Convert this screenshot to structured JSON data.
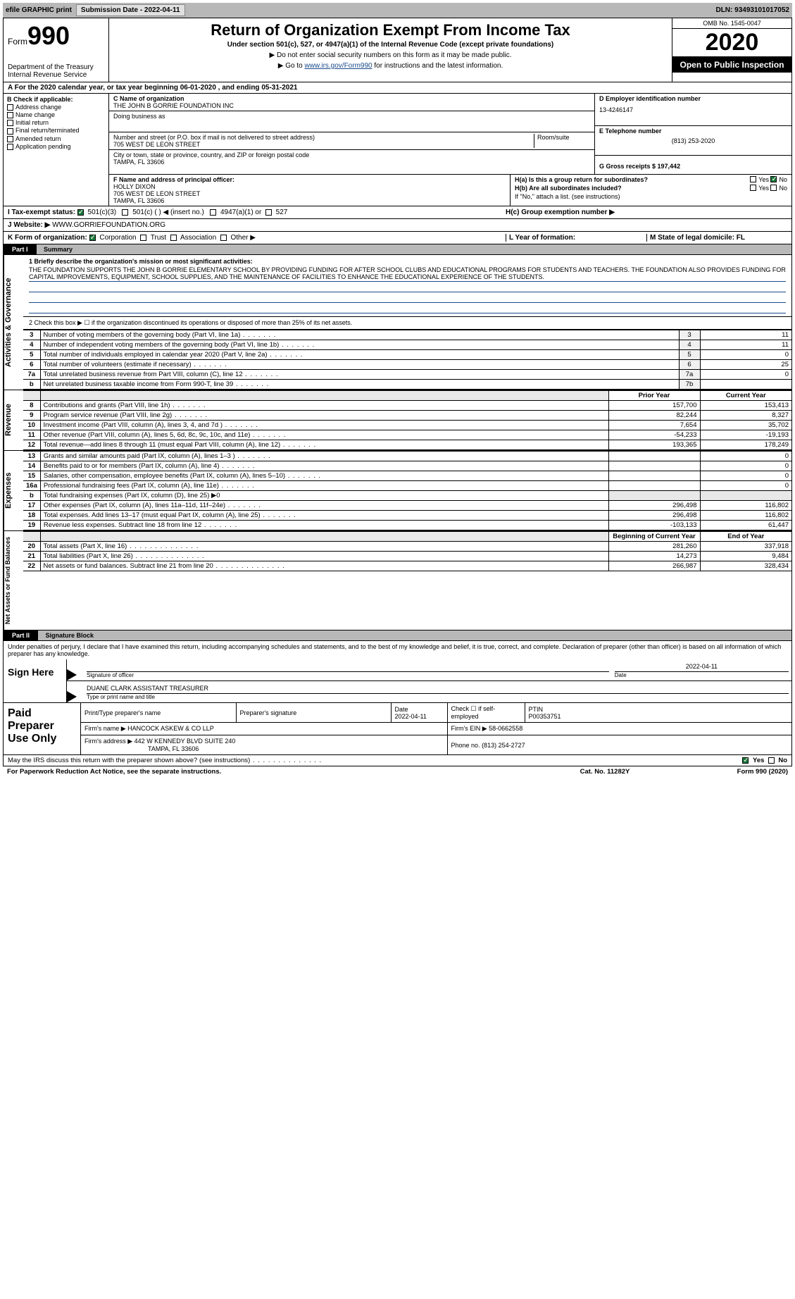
{
  "topbar": {
    "efile": "efile GRAPHIC print",
    "subdate_label": "Submission Date - 2022-04-11",
    "dln": "DLN: 93493101017052"
  },
  "header": {
    "form_word": "Form",
    "form_num": "990",
    "dept": "Department of the Treasury\nInternal Revenue Service",
    "title": "Return of Organization Exempt From Income Tax",
    "sub": "Under section 501(c), 527, or 4947(a)(1) of the Internal Revenue Code (except private foundations)",
    "note1": "▶ Do not enter social security numbers on this form as it may be made public.",
    "note2_pre": "▶ Go to ",
    "note2_link": "www.irs.gov/Form990",
    "note2_post": " for instructions and the latest information.",
    "omb": "OMB No. 1545-0047",
    "year": "2020",
    "open": "Open to Public Inspection"
  },
  "row_a": "A For the 2020 calendar year, or tax year beginning 06-01-2020   , and ending 05-31-2021",
  "col_b": {
    "hdr": "B Check if applicable:",
    "items": [
      "Address change",
      "Name change",
      "Initial return",
      "Final return/terminated",
      "Amended return",
      "Application pending"
    ]
  },
  "col_c": {
    "name_label": "C Name of organization",
    "name": "THE JOHN B GORRIE FOUNDATION INC",
    "dba_label": "Doing business as",
    "dba": "",
    "addr_label": "Number and street (or P.O. box if mail is not delivered to street address)",
    "room_label": "Room/suite",
    "addr": "705 WEST DE LEON STREET",
    "city_label": "City or town, state or province, country, and ZIP or foreign postal code",
    "city": "TAMPA, FL  33606",
    "f_label": "F Name and address of principal officer:",
    "f_name": "HOLLY DIXON",
    "f_addr1": "705 WEST DE LEON STREET",
    "f_addr2": "TAMPA, FL  33606"
  },
  "col_de": {
    "d_label": "D Employer identification number",
    "d_val": "13-4246147",
    "e_label": "E Telephone number",
    "e_val": "(813) 253-2020",
    "g_label": "G Gross receipts $ 197,442"
  },
  "col_h": {
    "ha": "H(a)  Is this a group return for subordinates?",
    "hb": "H(b)  Are all subordinates included?",
    "hb_note": "If \"No,\" attach a list. (see instructions)",
    "hc": "H(c)  Group exemption number ▶",
    "yes": "Yes",
    "no": "No"
  },
  "row_i": {
    "label": "I  Tax-exempt status:",
    "opts": [
      "501(c)(3)",
      "501(c) (  ) ◀ (insert no.)",
      "4947(a)(1) or",
      "527"
    ]
  },
  "row_j": {
    "label": "J  Website: ▶",
    "val": "WWW.GORRIEFOUNDATION.ORG"
  },
  "row_k": {
    "label": "K Form of organization:",
    "opts": [
      "Corporation",
      "Trust",
      "Association",
      "Other ▶"
    ],
    "l": "L Year of formation:",
    "m": "M State of legal domicile: FL"
  },
  "part1": {
    "label": "Part I",
    "name": "Summary"
  },
  "summary": {
    "q1_label": "1  Briefly describe the organization's mission or most significant activities:",
    "q1_text": "THE FOUNDATION SUPPORTS THE JOHN B GORRIE ELEMENTARY SCHOOL BY PROVIDING FUNDING FOR AFTER SCHOOL CLUBS AND EDUCATIONAL PROGRAMS FOR STUDENTS AND TEACHERS. THE FOUNDATION ALSO PROVIDES FUNDING FOR CAPITAL IMPROVEMENTS, EQUIPMENT, SCHOOL SUPPLIES, AND THE MAINTENANCE OF FACILITIES TO ENHANCE THE EDUCATIONAL EXPERIENCE OF THE STUDENTS.",
    "q2": "2  Check this box ▶ ☐ if the organization discontinued its operations or disposed of more than 25% of its net assets.",
    "lines_ag": [
      {
        "n": "3",
        "d": "Number of voting members of the governing body (Part VI, line 1a)",
        "box": "3",
        "v": "11"
      },
      {
        "n": "4",
        "d": "Number of independent voting members of the governing body (Part VI, line 1b)",
        "box": "4",
        "v": "11"
      },
      {
        "n": "5",
        "d": "Total number of individuals employed in calendar year 2020 (Part V, line 2a)",
        "box": "5",
        "v": "0"
      },
      {
        "n": "6",
        "d": "Total number of volunteers (estimate if necessary)",
        "box": "6",
        "v": "25"
      },
      {
        "n": "7a",
        "d": "Total unrelated business revenue from Part VIII, column (C), line 12",
        "box": "7a",
        "v": "0"
      },
      {
        "n": "b",
        "d": "Net unrelated business taxable income from Form 990-T, line 39",
        "box": "7b",
        "v": ""
      }
    ],
    "prior_hdr": "Prior Year",
    "current_hdr": "Current Year",
    "revenue": [
      {
        "n": "8",
        "d": "Contributions and grants (Part VIII, line 1h)",
        "p": "157,700",
        "c": "153,413"
      },
      {
        "n": "9",
        "d": "Program service revenue (Part VIII, line 2g)",
        "p": "82,244",
        "c": "8,327"
      },
      {
        "n": "10",
        "d": "Investment income (Part VIII, column (A), lines 3, 4, and 7d )",
        "p": "7,654",
        "c": "35,702"
      },
      {
        "n": "11",
        "d": "Other revenue (Part VIII, column (A), lines 5, 6d, 8c, 9c, 10c, and 11e)",
        "p": "-54,233",
        "c": "-19,193"
      },
      {
        "n": "12",
        "d": "Total revenue—add lines 8 through 11 (must equal Part VIII, column (A), line 12)",
        "p": "193,365",
        "c": "178,249"
      }
    ],
    "expenses": [
      {
        "n": "13",
        "d": "Grants and similar amounts paid (Part IX, column (A), lines 1–3 )",
        "p": "",
        "c": "0"
      },
      {
        "n": "14",
        "d": "Benefits paid to or for members (Part IX, column (A), line 4)",
        "p": "",
        "c": "0"
      },
      {
        "n": "15",
        "d": "Salaries, other compensation, employee benefits (Part IX, column (A), lines 5–10)",
        "p": "",
        "c": "0"
      },
      {
        "n": "16a",
        "d": "Professional fundraising fees (Part IX, column (A), line 11e)",
        "p": "",
        "c": "0"
      },
      {
        "n": "b",
        "d": "Total fundraising expenses (Part IX, column (D), line 25) ▶0",
        "p": "",
        "c": "",
        "shade": true
      },
      {
        "n": "17",
        "d": "Other expenses (Part IX, column (A), lines 11a–11d, 11f–24e)",
        "p": "296,498",
        "c": "116,802"
      },
      {
        "n": "18",
        "d": "Total expenses. Add lines 13–17 (must equal Part IX, column (A), line 25)",
        "p": "296,498",
        "c": "116,802"
      },
      {
        "n": "19",
        "d": "Revenue less expenses. Subtract line 18 from line 12",
        "p": "-103,133",
        "c": "61,447"
      }
    ],
    "begin_hdr": "Beginning of Current Year",
    "end_hdr": "End of Year",
    "netassets": [
      {
        "n": "20",
        "d": "Total assets (Part X, line 16)",
        "p": "281,260",
        "c": "337,918"
      },
      {
        "n": "21",
        "d": "Total liabilities (Part X, line 26)",
        "p": "14,273",
        "c": "9,484"
      },
      {
        "n": "22",
        "d": "Net assets or fund balances. Subtract line 21 from line 20",
        "p": "266,987",
        "c": "328,434"
      }
    ],
    "side_ag": "Activities & Governance",
    "side_rev": "Revenue",
    "side_exp": "Expenses",
    "side_net": "Net Assets or Fund Balances"
  },
  "part2": {
    "label": "Part II",
    "name": "Signature Block",
    "penalties": "Under penalties of perjury, I declare that I have examined this return, including accompanying schedules and statements, and to the best of my knowledge and belief, it is true, correct, and complete. Declaration of preparer (other than officer) is based on all information of which preparer has any knowledge.",
    "sign_here": "Sign Here",
    "sig_officer": "Signature of officer",
    "sig_date": "Date",
    "sig_date_val": "2022-04-11",
    "sig_name": "DUANE CLARK  ASSISTANT TREASURER",
    "sig_name_lbl": "Type or print name and title"
  },
  "paid": {
    "label": "Paid Preparer Use Only",
    "print_name_lbl": "Print/Type preparer's name",
    "prep_sig_lbl": "Preparer's signature",
    "date_lbl": "Date",
    "date_val": "2022-04-11",
    "check_lbl": "Check ☐ if self-employed",
    "ptin_lbl": "PTIN",
    "ptin_val": "P00353751",
    "firm_name_lbl": "Firm's name    ▶",
    "firm_name": "HANCOCK ASKEW & CO LLP",
    "firm_ein_lbl": "Firm's EIN ▶",
    "firm_ein": "58-0662558",
    "firm_addr_lbl": "Firm's address ▶",
    "firm_addr1": "442 W KENNEDY BLVD SUITE 240",
    "firm_addr2": "TAMPA, FL  33606",
    "phone_lbl": "Phone no.",
    "phone": "(813) 254-2727"
  },
  "footer": {
    "discuss": "May the IRS discuss this return with the preparer shown above? (see instructions)",
    "yes": "Yes",
    "no": "No",
    "paperwork": "For Paperwork Reduction Act Notice, see the separate instructions.",
    "cat": "Cat. No. 11282Y",
    "form": "Form 990 (2020)"
  },
  "colors": {
    "topbar_bg": "#b8b8b8",
    "link": "#1a4b8c",
    "check_green": "#1a7a3a"
  }
}
